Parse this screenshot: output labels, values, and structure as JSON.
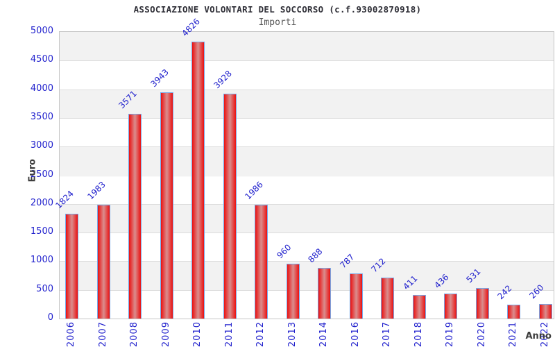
{
  "chart_data": {
    "type": "bar",
    "title": "ASSOCIAZIONE VOLONTARI DEL SOCCORSO (c.f.93002870918)",
    "subtitle": "Importi",
    "xlabel": "Anno",
    "ylabel": "Euro",
    "categories": [
      "2006",
      "2007",
      "2008",
      "2009",
      "2010",
      "2011",
      "2012",
      "2013",
      "2014",
      "2016",
      "2017",
      "2018",
      "2019",
      "2020",
      "2021",
      "2022"
    ],
    "values": [
      1824,
      1983,
      3571,
      3943,
      4826,
      3928,
      1986,
      960,
      888,
      787,
      712,
      411,
      436,
      531,
      242,
      260
    ],
    "ylim": [
      0,
      5000
    ],
    "ytick_step": 500,
    "y_tick_labels": [
      "0",
      "500",
      "1000",
      "1500",
      "2000",
      "2500",
      "3000",
      "3500",
      "4000",
      "4500",
      "5000"
    ],
    "legend": "none",
    "grid": "horizontal-bands-alternating",
    "colors": {
      "tick_label": "#2121cd",
      "value_label": "#2121cd",
      "bar_fill_edge": "#ea1111",
      "bar_fill_center": "#da8e8e",
      "bar_border": "#77a9e9",
      "band_gray": "#f2f2f2",
      "band_white": "#ffffff",
      "gridline": "#dcdcdc",
      "plot_border": "#c6c6c6",
      "title_color": "#2e2e36",
      "subtitle_color": "#565656",
      "axis_title_color": "#3d3d3d"
    }
  }
}
